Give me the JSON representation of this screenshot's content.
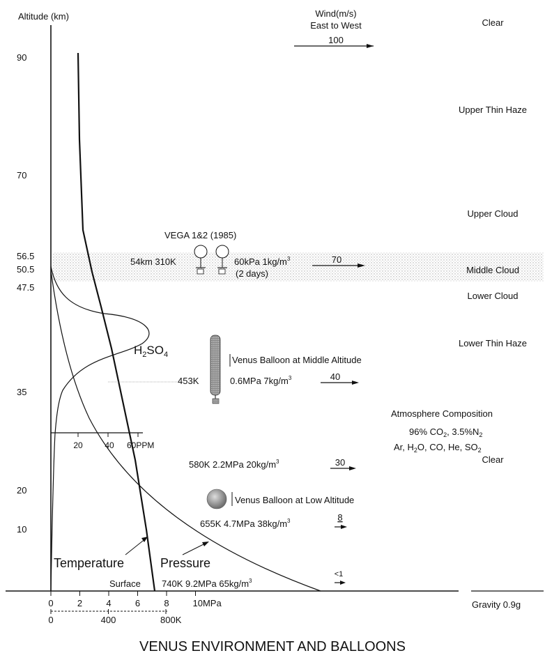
{
  "title": "VENUS ENVIRONMENT AND BALLOONS",
  "altitude_axis": {
    "label": "Altitude (km)",
    "ticks": [
      {
        "label": "90",
        "km": 90
      },
      {
        "label": "70",
        "km": 70
      },
      {
        "label": "56.5",
        "km": 56.5
      },
      {
        "label": "50.5",
        "km": 50.5
      },
      {
        "label": "47.5",
        "km": 47.5
      },
      {
        "label": "35",
        "km": 35
      },
      {
        "label": "20",
        "km": 20
      },
      {
        "label": "10",
        "km": 10
      }
    ]
  },
  "wind_header": {
    "line1": "Wind(m/s)",
    "line2": "East to West",
    "value": "100"
  },
  "layers": [
    {
      "label": "Clear"
    },
    {
      "label": "Upper Thin Haze"
    },
    {
      "label": "Upper Cloud"
    },
    {
      "label": "Middle Cloud"
    },
    {
      "label": "Lower Cloud"
    },
    {
      "label": "Lower Thin Haze"
    },
    {
      "label": "Clear"
    }
  ],
  "vega": {
    "title": "VEGA 1&2 (1985)",
    "left": "54km 310K",
    "right": "60kPa 1kg/m",
    "exp": "3",
    "duration": "(2 days)",
    "wind": "70"
  },
  "h2so4": {
    "main": "H",
    "sub1": "2",
    "mid": "SO",
    "sub2": "4"
  },
  "middle_balloon": {
    "label": "Venus Balloon at Middle Altitude",
    "temp": "453K",
    "cond": "0.6MPa 7kg/m",
    "exp": "3",
    "wind": "40"
  },
  "composition": {
    "title": "Atmosphere Composition",
    "line1": "96% CO",
    "line1b": ", 3.5%N",
    "line2": "Ar, H",
    "line2b": "O, CO, He, SO",
    "sub": "2"
  },
  "ppm_axis": {
    "labels": [
      "20",
      "40",
      "60PPM"
    ]
  },
  "cond_20km": {
    "text": "580K 2.2MPa 20kg/m",
    "exp": "3",
    "wind": "30"
  },
  "low_balloon": {
    "label": "Venus Balloon at Low Altitude",
    "cond": "655K 4.7MPa 38kg/m",
    "exp": "3",
    "wind": "8"
  },
  "curve_labels": {
    "temperature": "Temperature",
    "pressure": "Pressure"
  },
  "surface": {
    "label": "Surface",
    "cond": "740K 9.2MPa 65kg/m",
    "exp": "3",
    "wind": "<1",
    "gravity": "Gravity 0.9g"
  },
  "pressure_axis": {
    "labels": [
      "0",
      "2",
      "4",
      "6",
      "8",
      "10MPa"
    ]
  },
  "temp_axis": {
    "labels": [
      "0",
      "400",
      "800K"
    ]
  }
}
